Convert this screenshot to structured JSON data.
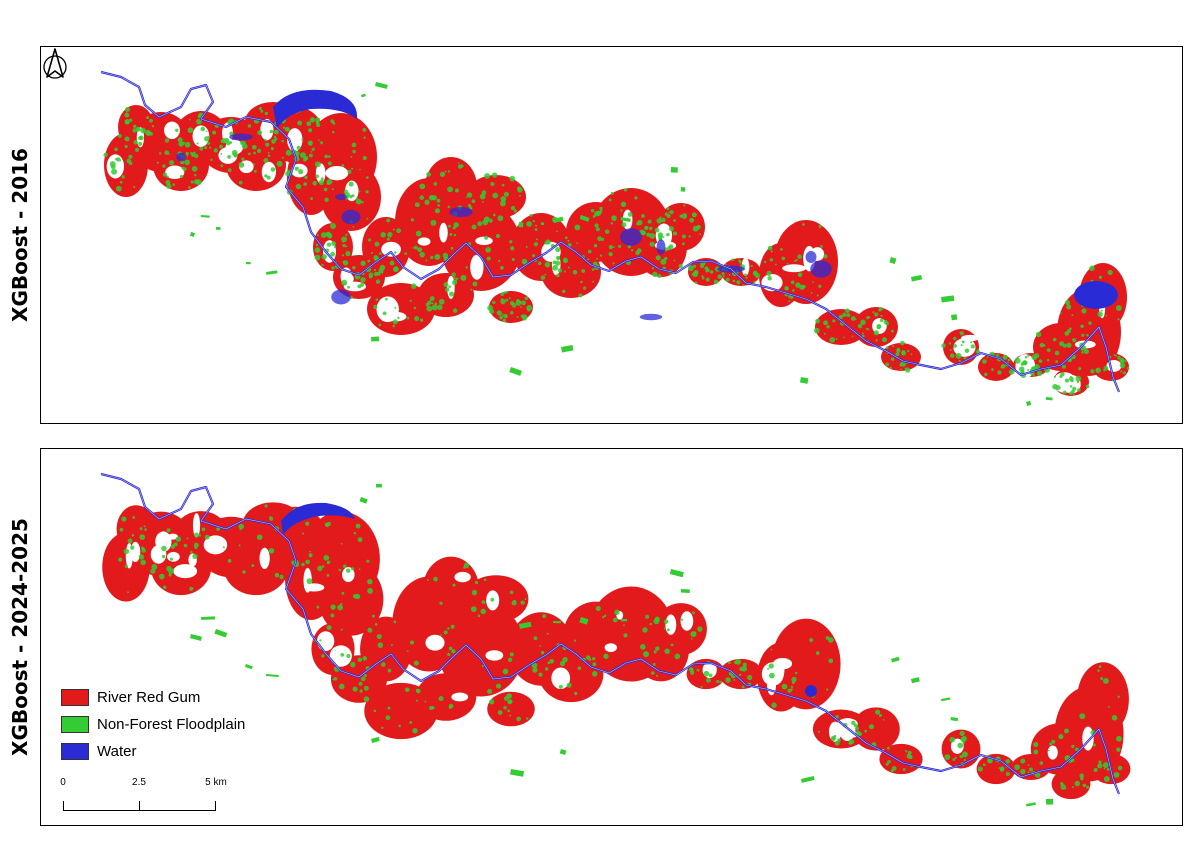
{
  "panels": [
    {
      "label": "XGBoost - 2016",
      "year_class": "2016"
    },
    {
      "label": "XGBoost - 2024-2025",
      "year_class": "2024"
    }
  ],
  "legend": {
    "items": [
      {
        "label": "River Red Gum",
        "color": "#e31a1c"
      },
      {
        "label": "Non-Forest Floodplain",
        "color": "#33cc33"
      },
      {
        "label": "Water",
        "color": "#2b2bd6"
      }
    ]
  },
  "scalebar": {
    "ticks": [
      "0",
      "2.5",
      "5 km"
    ]
  },
  "north_arrow": {
    "icon": "north-arrow-icon"
  },
  "colors": {
    "gum": "#e31a1c",
    "floodplain": "#33cc33",
    "water": "#2b2bd6",
    "frame": "#000000"
  }
}
